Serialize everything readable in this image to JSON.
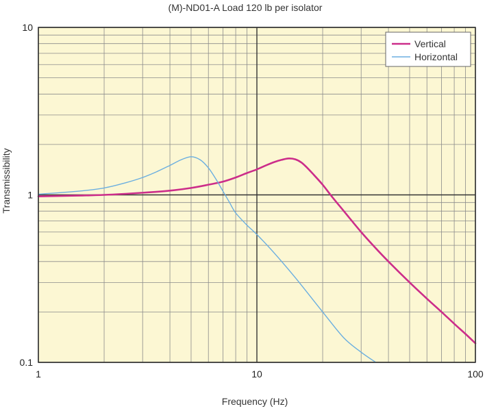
{
  "chart_data": {
    "type": "line",
    "title": "(M)-ND01-A Load 120 lb per isolator",
    "xlabel": "Frequency (Hz)",
    "ylabel": "Transmissibility",
    "xscale": "log",
    "yscale": "log",
    "xlim": [
      1,
      100
    ],
    "ylim": [
      0.1,
      10
    ],
    "xticks": [
      {
        "value": 1,
        "label": "1"
      },
      {
        "value": 10,
        "label": "10"
      },
      {
        "value": 100,
        "label": "100"
      }
    ],
    "yticks": [
      {
        "value": 0.1,
        "label": "0.1"
      },
      {
        "value": 1,
        "label": "1"
      },
      {
        "value": 10,
        "label": "10"
      }
    ],
    "grid": true,
    "legend_position": "top-right",
    "series": [
      {
        "name": "Vertical",
        "color": "#cc2d8a",
        "x": [
          1,
          1.5,
          2,
          3,
          4,
          5,
          6,
          7,
          8,
          9,
          10,
          11,
          12,
          13,
          14,
          15,
          16,
          17,
          18,
          20,
          22,
          25,
          30,
          35,
          40,
          50,
          60,
          70,
          80,
          90,
          100
        ],
        "y": [
          0.98,
          0.99,
          1.0,
          1.03,
          1.06,
          1.1,
          1.15,
          1.2,
          1.27,
          1.35,
          1.42,
          1.5,
          1.57,
          1.62,
          1.65,
          1.63,
          1.56,
          1.45,
          1.34,
          1.15,
          0.98,
          0.8,
          0.6,
          0.48,
          0.4,
          0.3,
          0.24,
          0.2,
          0.17,
          0.148,
          0.13
        ]
      },
      {
        "name": "Horizontal",
        "color": "#6aaee0",
        "x": [
          1,
          1.5,
          2,
          2.5,
          3,
          3.5,
          4,
          4.5,
          5,
          5.5,
          6,
          6.5,
          7,
          7.5,
          8,
          9,
          10,
          12,
          15,
          20,
          25,
          30,
          35
        ],
        "y": [
          1.01,
          1.05,
          1.1,
          1.18,
          1.27,
          1.38,
          1.5,
          1.62,
          1.69,
          1.62,
          1.45,
          1.24,
          1.05,
          0.9,
          0.78,
          0.66,
          0.58,
          0.45,
          0.32,
          0.2,
          0.14,
          0.115,
          0.1
        ]
      }
    ]
  }
}
